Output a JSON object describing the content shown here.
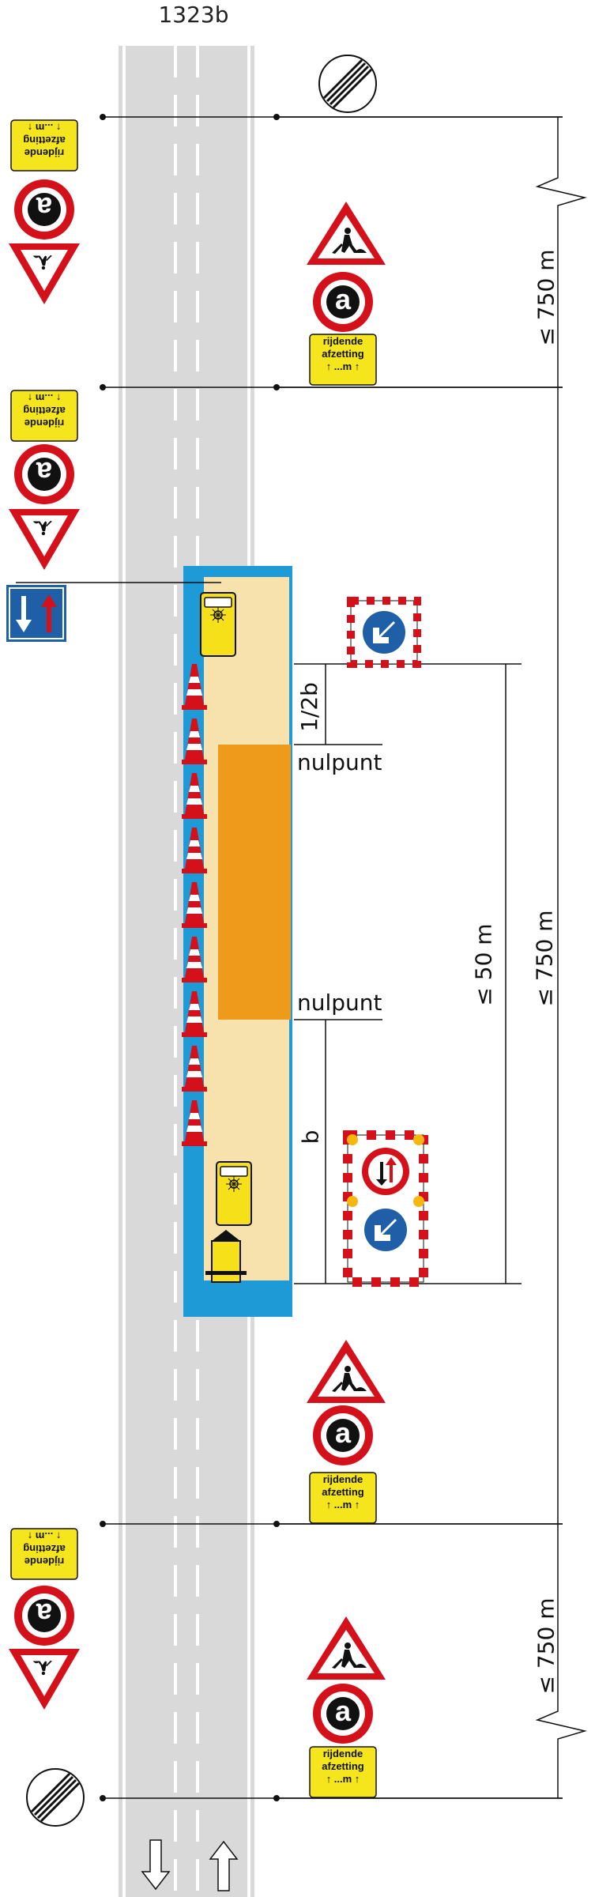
{
  "title": "1323b",
  "labels": {
    "nulpunt": "nulpunt",
    "half_b": "1/2b",
    "b": "b",
    "dist_750": "≤ 750 m",
    "dist_50": "≤ 50 m"
  },
  "sign_text": {
    "a_letter": "a",
    "rijdende": "rijdende",
    "afzetting": "afzetting",
    "arrow_m": "↑ ...m ↑"
  },
  "colors": {
    "road": "#d9d9d9",
    "lane_marking": "#ffffff",
    "work_area": "#f7e2ae",
    "work_zone": "#ee9a1b",
    "blue_zone": "#1e9ad6",
    "sign_red": "#d4111b",
    "sign_yellow": "#f5e51c",
    "sign_blue": "#1f5fa8",
    "vehicle_yellow": "#f6e01a",
    "line": "#111111"
  },
  "icons": {
    "end_restriction": "end-of-restriction-sign",
    "roadworks": "roadworks-warning-sign",
    "a_sign": "prohibition-a-sign",
    "priority_oncoming": "priority-oncoming-traffic-sign",
    "keep_right": "keep-left-arrow-sign",
    "cone": "traffic-cone",
    "vehicle": "work-vehicle",
    "trailer": "arrow-trailer"
  },
  "cone_count": 9
}
